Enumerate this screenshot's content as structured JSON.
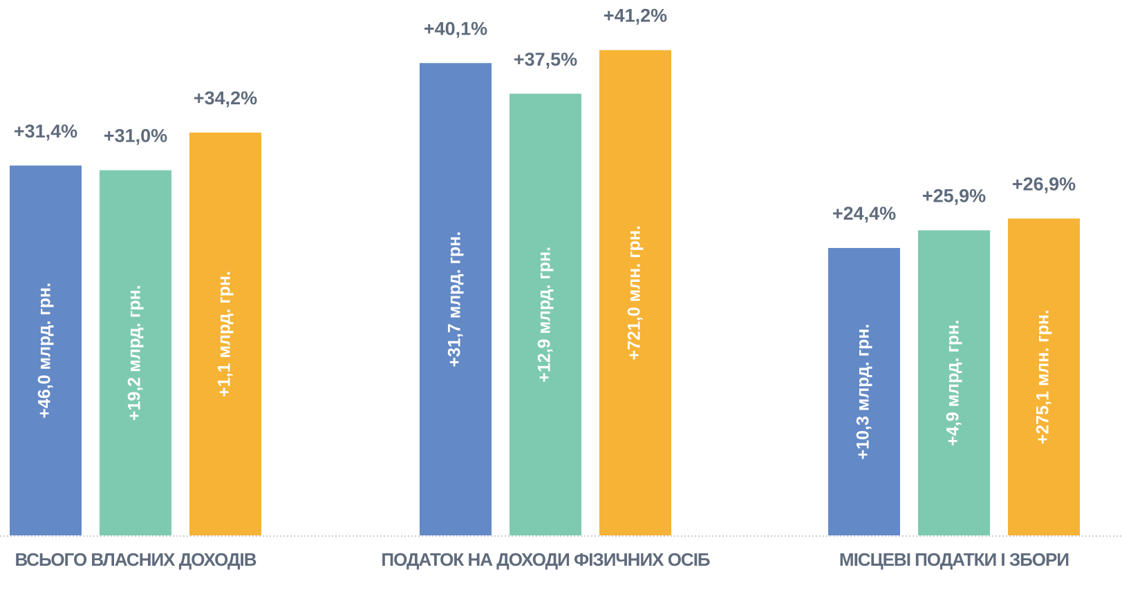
{
  "chart_data": {
    "type": "bar",
    "categories": [
      "ВСЬОГО ВЛАСНИХ ДОХОДІВ",
      "ПОДАТОК НА ДОХОДИ ФІЗИЧНИХ ОСІБ",
      "МІСЦЕВІ ПОДАТКИ І ЗБОРИ"
    ],
    "series": [
      {
        "color": "#6389c6",
        "values": [
          31.4,
          40.1,
          24.4
        ],
        "value_labels": [
          "+31,4%",
          "+40,1%",
          "+24,4%"
        ],
        "bar_labels": [
          "+46,0 млрд. грн.",
          "+31,7 млрд. грн.",
          "+10,3 млрд. грн."
        ]
      },
      {
        "color": "#7ecab0",
        "values": [
          31.0,
          37.5,
          25.9
        ],
        "value_labels": [
          "+31,0%",
          "+37,5%",
          "+25,9%"
        ],
        "bar_labels": [
          "+19,2 млрд. грн.",
          "+12,9 млрд. грн.",
          "+4,9 млрд. грн."
        ]
      },
      {
        "color": "#f6b336",
        "values": [
          34.2,
          41.2,
          26.9
        ],
        "value_labels": [
          "+34,2%",
          "+41,2%",
          "+26,9%"
        ],
        "bar_labels": [
          "+1,1 млрд. грн.",
          "+721,0 млн. грн.",
          "+275,1 млн. грн."
        ]
      }
    ]
  }
}
